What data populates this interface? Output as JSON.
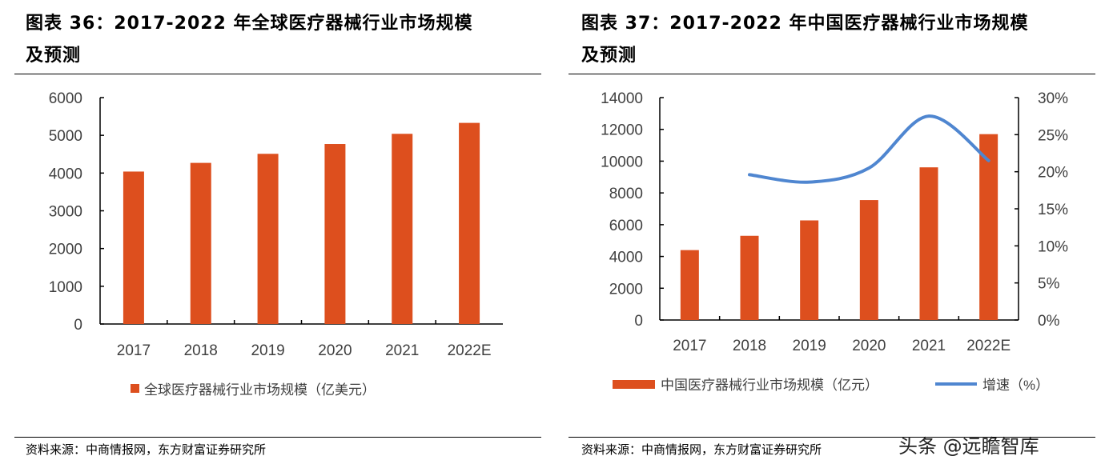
{
  "colors": {
    "bar": "#DD4F1E",
    "line": "#4F86D0",
    "axis": "#000000",
    "text": "#404040"
  },
  "left": {
    "title_line1": "图表 36：2017-2022 年全球医疗器械行业市场规模",
    "title_line2": "及预测",
    "source": "资料来源：中商情报网，东方财富证券研究所"
  },
  "right": {
    "title_line1": "图表 37：2017-2022 年中国医疗器械行业市场规模",
    "title_line2": "及预测",
    "source": "资料来源：中商情报网，东方财富证券研究所"
  },
  "watermark": "头条 @远瞻智库",
  "chart_data": [
    {
      "type": "bar",
      "categories": [
        "2017",
        "2018",
        "2019",
        "2020",
        "2021",
        "2022E"
      ],
      "series": [
        {
          "name": "全球医疗器械行业市场规模（亿美元）",
          "values": [
            4040,
            4270,
            4510,
            4770,
            5040,
            5330
          ]
        }
      ],
      "ylim": [
        0,
        6000
      ],
      "yticks": [
        "0",
        "1000",
        "2000",
        "3000",
        "4000",
        "5000",
        "6000"
      ],
      "grid": false,
      "legend": "bottom"
    },
    {
      "type": "bar+line",
      "categories": [
        "2017",
        "2018",
        "2019",
        "2020",
        "2021",
        "2022E"
      ],
      "series": [
        {
          "name": "中国医疗器械行业市场规模（亿元）",
          "type": "bar",
          "axis": "left",
          "values": [
            4400,
            5300,
            6270,
            7550,
            9610,
            11700
          ]
        },
        {
          "name": "增速（%）",
          "type": "line",
          "axis": "right",
          "values": [
            null,
            19.6,
            18.6,
            20.5,
            27.5,
            21.5
          ]
        }
      ],
      "ylim": [
        0,
        14000
      ],
      "yticks": [
        "0",
        "2000",
        "4000",
        "6000",
        "8000",
        "10000",
        "12000",
        "14000"
      ],
      "y2lim": [
        0,
        30
      ],
      "y2ticks": [
        "0%",
        "5%",
        "10%",
        "15%",
        "20%",
        "25%",
        "30%"
      ],
      "grid": false,
      "legend": "bottom"
    }
  ]
}
